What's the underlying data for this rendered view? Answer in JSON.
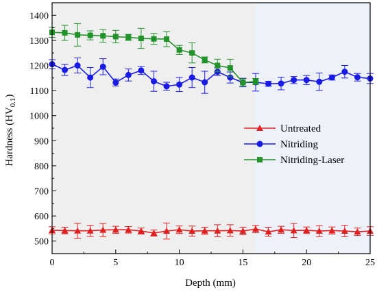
{
  "chart_data": {
    "type": "line",
    "xlabel": "Depth (mm)",
    "ylabel_main": "Hardness (HV",
    "ylabel_sub": "0.1",
    "ylabel_close": ")",
    "xlim": [
      0,
      25
    ],
    "ylim": [
      450,
      1450
    ],
    "xticks": [
      "0",
      "5",
      "10",
      "15",
      "20",
      "25"
    ],
    "yticks": [
      "500",
      "600",
      "700",
      "800",
      "900",
      "1000",
      "1100",
      "1200",
      "1300",
      "1400"
    ],
    "regions": [
      {
        "x0": 0,
        "x1": 16,
        "color": "#efefef"
      },
      {
        "x0": 16,
        "x1": 25,
        "color": "#edf2fa"
      }
    ],
    "legend_position": "center-right",
    "series": [
      {
        "name": "Untreated",
        "color": "#e02020",
        "marker": "triangle",
        "x": [
          0,
          1,
          2,
          3,
          4,
          5,
          6,
          7,
          8,
          9,
          10,
          11,
          12,
          13,
          14,
          15,
          16,
          17,
          18,
          19,
          20,
          21,
          22,
          23,
          24,
          25
        ],
        "y": [
          543,
          542,
          541,
          541,
          544,
          545,
          545,
          540,
          532,
          540,
          545,
          540,
          541,
          541,
          542,
          540,
          548,
          537,
          545,
          542,
          543,
          540,
          542,
          540,
          537,
          540
        ],
        "err": [
          14,
          13,
          30,
          22,
          26,
          14,
          13,
          12,
          12,
          32,
          15,
          20,
          14,
          24,
          23,
          15,
          15,
          18,
          14,
          28,
          13,
          22,
          14,
          23,
          15,
          17
        ]
      },
      {
        "name": "Nitriding",
        "color": "#1a1ae6",
        "marker": "circle",
        "x": [
          0,
          1,
          2,
          3,
          4,
          5,
          6,
          7,
          8,
          9,
          10,
          11,
          12,
          13,
          14,
          15,
          16,
          17,
          18,
          19,
          20,
          21,
          22,
          23,
          24,
          25
        ],
        "y": [
          1205,
          1182,
          1200,
          1152,
          1195,
          1132,
          1162,
          1180,
          1137,
          1117,
          1124,
          1152,
          1133,
          1175,
          1152,
          1132,
          1133,
          1127,
          1128,
          1142,
          1142,
          1135,
          1152,
          1175,
          1153,
          1148
        ],
        "err": [
          18,
          22,
          30,
          40,
          32,
          14,
          24,
          16,
          40,
          16,
          28,
          40,
          44,
          15,
          22,
          17,
          35,
          10,
          25,
          14,
          18,
          35,
          10,
          25,
          15,
          20
        ]
      },
      {
        "name": "Nitriding-Laser",
        "color": "#22922a",
        "marker": "square",
        "x": [
          0,
          1,
          2,
          3,
          4,
          5,
          6,
          7,
          8,
          9,
          10,
          11,
          12,
          13,
          14,
          15,
          16
        ],
        "y": [
          1332,
          1330,
          1322,
          1320,
          1318,
          1315,
          1312,
          1308,
          1306,
          1305,
          1262,
          1250,
          1222,
          1200,
          1190,
          1132,
          1136
        ],
        "err": [
          20,
          30,
          45,
          18,
          25,
          25,
          12,
          40,
          22,
          30,
          18,
          40,
          12,
          25,
          35,
          15,
          12
        ]
      }
    ]
  }
}
